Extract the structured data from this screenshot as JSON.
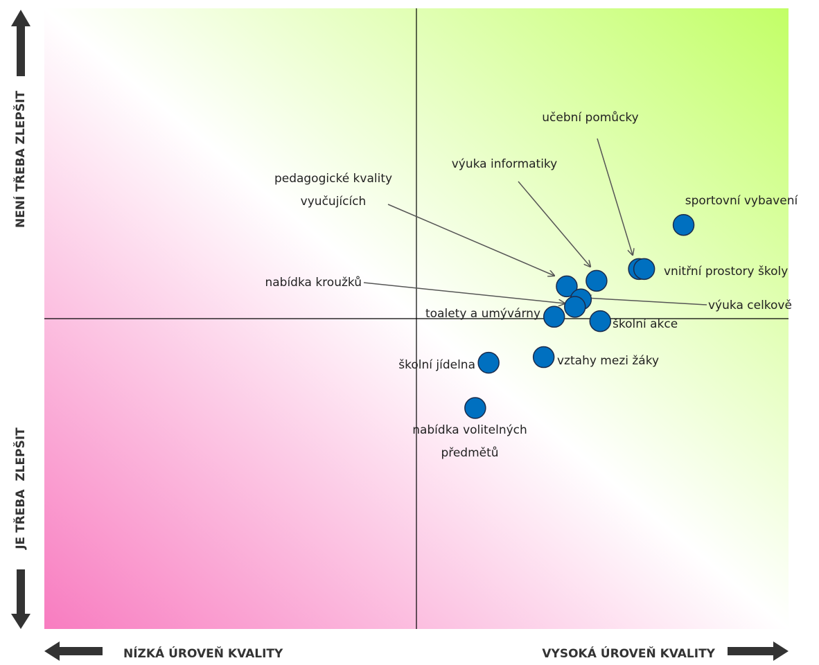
{
  "chart_data": {
    "type": "scatter",
    "x_label_low": "NÍZKÁ ÚROVEŇ KVALITY",
    "x_label_high": "VYSOKÁ ÚROVEŇ KVALITY",
    "y_label_high": "NENÍ TŘEBA ZLEPŠIT",
    "y_label_low": "JE TŘEBA  ZLEPŠIT",
    "xlim": [
      0,
      100
    ],
    "ylim": [
      0,
      100
    ],
    "x_cross": 50,
    "y_cross": 50,
    "color": "#0070c0",
    "points": [
      {
        "label": [
          "sportovní vybavení"
        ],
        "x": 85.9,
        "y": 65.1
      },
      {
        "label": [
          "učební pomůcky"
        ],
        "x": 79.9,
        "y": 58.0
      },
      {
        "label": [
          "vnitřní prostory školy"
        ],
        "x": 80.6,
        "y": 58.0
      },
      {
        "label": [
          "výuka informatiky"
        ],
        "x": 74.2,
        "y": 56.1
      },
      {
        "label": [
          "pedagogické kvality",
          "vyučujících"
        ],
        "x": 70.2,
        "y": 55.2
      },
      {
        "label": [
          "výuka celkově"
        ],
        "x": 72.1,
        "y": 53.1
      },
      {
        "label": [
          "nabídka kroužků"
        ],
        "x": 71.3,
        "y": 51.9
      },
      {
        "label": [
          "toalety a umývárny"
        ],
        "x": 68.5,
        "y": 50.3
      },
      {
        "label": [
          "školní akce"
        ],
        "x": 74.7,
        "y": 49.6
      },
      {
        "label": [
          "vztahy mezi žáky"
        ],
        "x": 67.1,
        "y": 43.8
      },
      {
        "label": [
          "školní jídelna"
        ],
        "x": 59.7,
        "y": 42.9
      },
      {
        "label": [
          "nabídka volitelných",
          "předmětů"
        ],
        "x": 57.9,
        "y": 35.6
      }
    ]
  }
}
